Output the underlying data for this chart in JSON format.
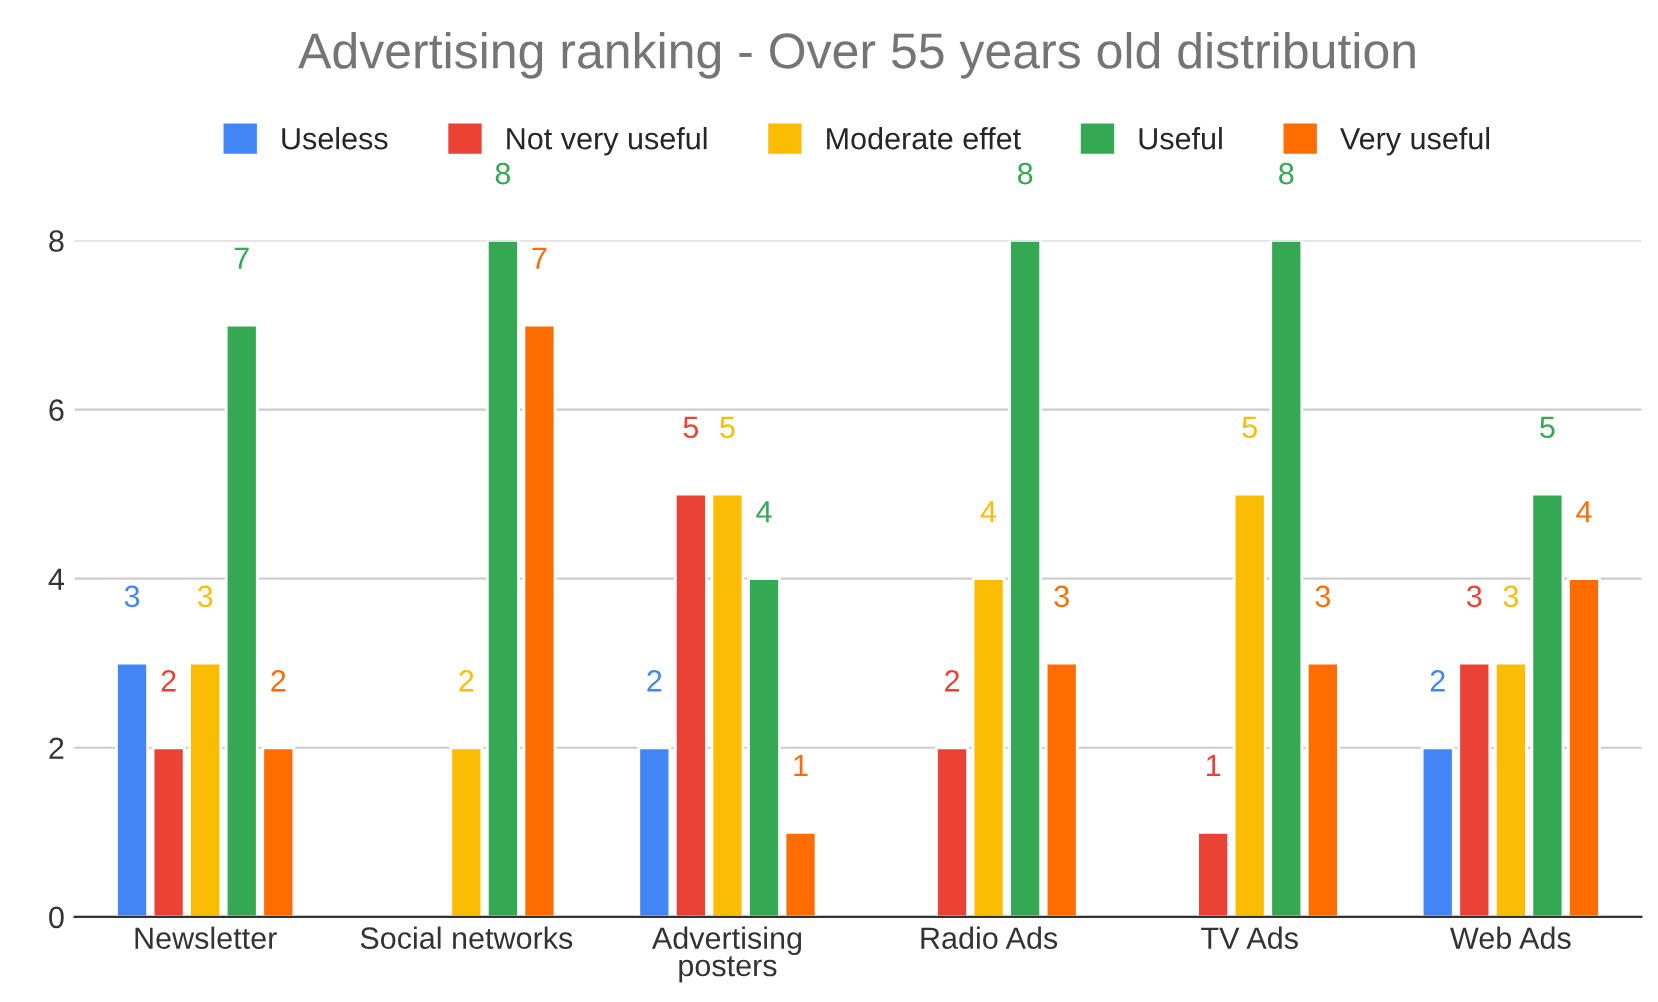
{
  "chart_data": {
    "type": "bar",
    "title": "Advertising ranking - Over 55 years old distribution",
    "categories": [
      "Newsletter",
      "Social networks",
      "Advertising\nposters",
      "Radio Ads",
      "TV Ads",
      "Web Ads"
    ],
    "series": [
      {
        "name": "Useless",
        "color": "#4285f4",
        "values": [
          3,
          null,
          2,
          null,
          null,
          2
        ],
        "value_labels": [
          "3",
          null,
          "2",
          null,
          null,
          "2"
        ]
      },
      {
        "name": "Not very useful",
        "color": "#ea4335",
        "values": [
          2,
          null,
          5,
          2,
          1,
          3
        ],
        "value_labels": [
          "2",
          null,
          "5",
          "2",
          "1",
          "3"
        ]
      },
      {
        "name": "Moderate effet",
        "color": "#fbbc04",
        "values": [
          3,
          2,
          5,
          4,
          5,
          3
        ],
        "value_labels": [
          "3",
          "2",
          "5",
          "4",
          "5",
          "3"
        ]
      },
      {
        "name": "Useful",
        "color": "#34a853",
        "values": [
          7,
          8,
          4,
          8,
          8,
          5
        ],
        "value_labels": [
          "7",
          "8",
          "4",
          "8",
          "8",
          "5"
        ]
      },
      {
        "name": "Very useful",
        "color": "#ff6d01",
        "values": [
          2,
          7,
          1,
          3,
          3,
          4
        ],
        "value_labels": [
          "2",
          "7",
          "1",
          "3",
          "3",
          "4"
        ]
      }
    ],
    "ylim": [
      0,
      8
    ],
    "yticks": [
      0,
      2,
      4,
      6,
      8
    ],
    "grid": "y",
    "legend": "top"
  }
}
